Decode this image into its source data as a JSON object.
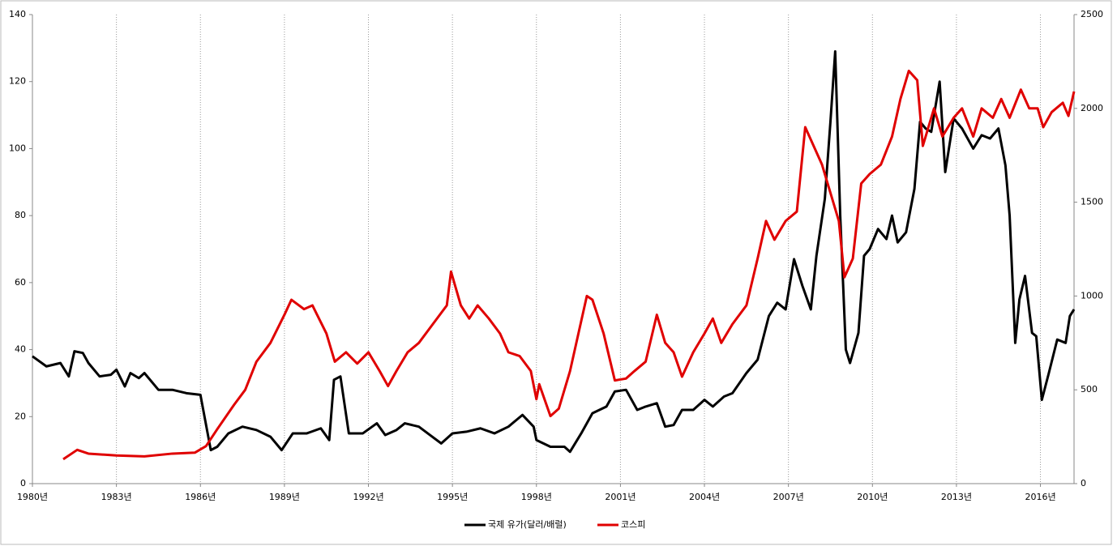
{
  "chart_data": {
    "type": "line",
    "xlim": [
      1980,
      2017.2
    ],
    "xticks": [
      {
        "value": 1980,
        "label": "1980년"
      },
      {
        "value": 1983,
        "label": "1983년"
      },
      {
        "value": 1986,
        "label": "1986년"
      },
      {
        "value": 1989,
        "label": "1989년"
      },
      {
        "value": 1992,
        "label": "1992년"
      },
      {
        "value": 1995,
        "label": "1995년"
      },
      {
        "value": 1998,
        "label": "1998년"
      },
      {
        "value": 2001,
        "label": "2001년"
      },
      {
        "value": 2004,
        "label": "2004년"
      },
      {
        "value": 2007,
        "label": "2007년"
      },
      {
        "value": 2010,
        "label": "2010년"
      },
      {
        "value": 2013,
        "label": "2013년"
      },
      {
        "value": 2016,
        "label": "2016년"
      }
    ],
    "ylim": [
      0,
      140
    ],
    "yticks": [
      0,
      20,
      40,
      60,
      80,
      100,
      120,
      140
    ],
    "y2lim": [
      0,
      2500
    ],
    "y2ticks": [
      0,
      500,
      1000,
      1500,
      2000,
      2500
    ],
    "grid": "x",
    "legend": "bottom",
    "series": [
      {
        "name": "국제 유가(달러/배럴)",
        "color": "#000000",
        "x": [
          1980,
          1980.5,
          1981,
          1981.3,
          1981.5,
          1981.8,
          1982,
          1982.4,
          1982.8,
          1983,
          1983.3,
          1983.5,
          1983.8,
          1984,
          1984.5,
          1985,
          1985.5,
          1986,
          1986.37,
          1986.6,
          1987,
          1987.5,
          1988,
          1988.5,
          1988.9,
          1989.3,
          1989.8,
          1990.3,
          1990.6,
          1990.77,
          1991,
          1991.3,
          1991.8,
          1992.3,
          1992.6,
          1993,
          1993.3,
          1993.8,
          1994.2,
          1994.6,
          1995,
          1995.5,
          1996,
          1996.5,
          1997,
          1997.5,
          1997.9,
          1998,
          1998.5,
          1999,
          1999.2,
          1999.6,
          2000,
          2000.5,
          2000.8,
          2001.2,
          2001.6,
          2001.9,
          2002.3,
          2002.6,
          2002.9,
          2003.2,
          2003.6,
          2004,
          2004.3,
          2004.7,
          2005,
          2005.5,
          2005.9,
          2006.3,
          2006.6,
          2006.9,
          2007.2,
          2007.5,
          2007.8,
          2008,
          2008.3,
          2008.5,
          2008.67,
          2008.85,
          2009.05,
          2009.2,
          2009.5,
          2009.7,
          2009.9,
          2010.2,
          2010.5,
          2010.7,
          2010.9,
          2011.2,
          2011.5,
          2011.7,
          2011.9,
          2012.1,
          2012.4,
          2012.6,
          2012.9,
          2013.2,
          2013.6,
          2013.9,
          2014.2,
          2014.5,
          2014.75,
          2014.9,
          2015.1,
          2015.25,
          2015.45,
          2015.7,
          2015.85,
          2016.05,
          2016.3,
          2016.6,
          2016.9,
          2017.05,
          2017.2
        ],
        "values": [
          38,
          35,
          36,
          32,
          39.5,
          39,
          36,
          32,
          32.5,
          34,
          29,
          33,
          31.5,
          33,
          28,
          28,
          27,
          26.5,
          10,
          11,
          15,
          17,
          16,
          14,
          10,
          15,
          15,
          16.5,
          13,
          31,
          32,
          15,
          15,
          18,
          14.5,
          16,
          18,
          17,
          14.5,
          12,
          15,
          15.5,
          16.5,
          15,
          17,
          20.5,
          17,
          13,
          11,
          11,
          9.5,
          15,
          21,
          23,
          27.5,
          28,
          22,
          23,
          24,
          17,
          17.5,
          22,
          22,
          25,
          23,
          26,
          27,
          33,
          37,
          50,
          54,
          52,
          67,
          59,
          52,
          68,
          85,
          108,
          129,
          80,
          40,
          36,
          45,
          68,
          70,
          76,
          73,
          80,
          72,
          75,
          88,
          108,
          106,
          105,
          120,
          93,
          109,
          106,
          100,
          104,
          103,
          106,
          95,
          80,
          42,
          55,
          62,
          45,
          44,
          25,
          33,
          43,
          42,
          50,
          52
        ]
      },
      {
        "name": "코스피",
        "color": "#e00000",
        "axis": "y2",
        "x": [
          1981.1,
          1981.6,
          1982,
          1983,
          1984,
          1985,
          1985.8,
          1986.2,
          1986.6,
          1987.2,
          1987.6,
          1988,
          1988.5,
          1989,
          1989.25,
          1989.7,
          1990,
          1990.5,
          1990.8,
          1991.2,
          1991.6,
          1992,
          1992.4,
          1992.7,
          1993,
          1993.4,
          1993.8,
          1994.3,
          1994.8,
          1994.95,
          1995.3,
          1995.6,
          1995.9,
          1996.3,
          1996.7,
          1997,
          1997.4,
          1997.8,
          1998,
          1998.1,
          1998.5,
          1998.8,
          1999.2,
          1999.5,
          1999.8,
          2000,
          2000.4,
          2000.8,
          2001.2,
          2001.5,
          2001.9,
          2002.3,
          2002.6,
          2002.9,
          2003.2,
          2003.6,
          2004,
          2004.3,
          2004.6,
          2005,
          2005.5,
          2005.9,
          2006.2,
          2006.5,
          2006.9,
          2007.3,
          2007.6,
          2007.9,
          2008.2,
          2008.5,
          2008.8,
          2009,
          2009.3,
          2009.6,
          2009.9,
          2010.3,
          2010.7,
          2011,
          2011.3,
          2011.6,
          2011.8,
          2012.2,
          2012.5,
          2012.9,
          2013.2,
          2013.6,
          2013.9,
          2014.3,
          2014.6,
          2014.9,
          2015.3,
          2015.6,
          2015.9,
          2016.1,
          2016.4,
          2016.8,
          2017,
          2017.2
        ],
        "values": [
          130,
          180,
          160,
          150,
          145,
          160,
          165,
          200,
          290,
          420,
          500,
          650,
          750,
          900,
          980,
          930,
          950,
          800,
          650,
          700,
          640,
          700,
          600,
          520,
          600,
          700,
          750,
          850,
          950,
          1130,
          950,
          880,
          950,
          880,
          800,
          700,
          680,
          600,
          450,
          530,
          360,
          400,
          600,
          800,
          1000,
          980,
          800,
          550,
          560,
          600,
          650,
          900,
          750,
          700,
          570,
          700,
          800,
          880,
          750,
          850,
          950,
          1200,
          1400,
          1300,
          1400,
          1450,
          1900,
          1800,
          1700,
          1550,
          1400,
          1100,
          1200,
          1600,
          1650,
          1700,
          1850,
          2050,
          2200,
          2150,
          1800,
          2000,
          1850,
          1950,
          2000,
          1850,
          2000,
          1950,
          2050,
          1950,
          2100,
          2000,
          2000,
          1900,
          1980,
          2030,
          1960,
          2090
        ]
      }
    ]
  }
}
